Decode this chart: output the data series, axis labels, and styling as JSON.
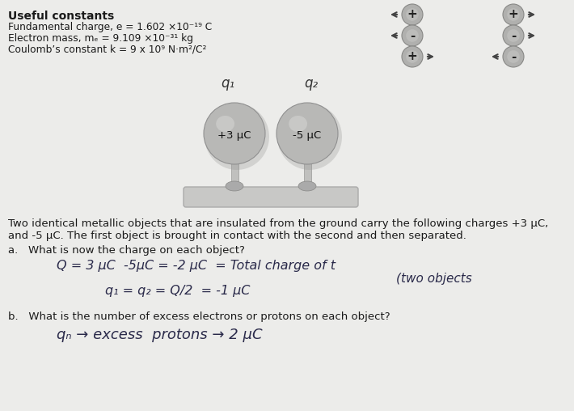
{
  "background_color": "#ececea",
  "title_text": "Useful constants",
  "constants": [
    "Fundamental charge, e = 1.602 ×10⁻¹⁹ C",
    "Electron mass, mₑ = 9.109 ×10⁻³¹ kg",
    "Coulomb’s constant k = 9 x 10⁹ N·m²/C²"
  ],
  "problem_text_1": "Two identical metallic objects that are insulated from the ground carry the following charges +3 μC,",
  "problem_text_2": "and -5 μC. The first object is brought in contact with the second and then separated.",
  "part_a_q": "a.   What is now the charge on each object?",
  "part_b_q": "b.   What is the number of excess electrons or protons on each object?",
  "sphere1_label": "+3 μC",
  "sphere2_label": "-5 μC",
  "icon_rows": [
    {
      "left": {
        "sign": "+",
        "arrow": "left"
      },
      "right": {
        "sign": "+",
        "arrow": "right"
      }
    },
    {
      "left": {
        "sign": "-",
        "arrow": "left"
      },
      "right": {
        "sign": "-",
        "arrow": "right"
      }
    },
    {
      "left": {
        "sign": "+",
        "arrow": "right"
      },
      "right": {
        "sign": "-",
        "arrow": "left"
      }
    }
  ],
  "sphere_color": "#b8b8b6",
  "sphere_highlight": "#d4d4d2",
  "stand_color": "#c0c0be",
  "base_color": "#c8c8c6",
  "icon_color": "#b0b0ae",
  "text_color": "#1a1a1a",
  "handwrite_color": "#2a2a4a"
}
